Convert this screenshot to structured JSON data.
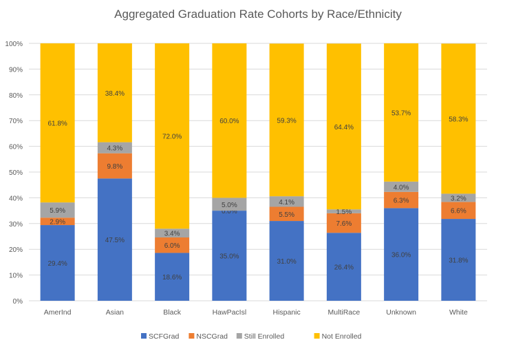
{
  "chart_data": {
    "type": "bar",
    "stacked": true,
    "title": "Aggregated Graduation Rate Cohorts by Race/Ethnicity",
    "xlabel": "",
    "ylabel": "",
    "ylim": [
      0,
      100
    ],
    "yticks": [
      "0%",
      "10%",
      "20%",
      "30%",
      "40%",
      "50%",
      "60%",
      "70%",
      "80%",
      "90%",
      "100%"
    ],
    "grid": true,
    "legend": "bottom",
    "categories": [
      "AmerInd",
      "Asian",
      "Black",
      "HawPacIsl",
      "Hispanic",
      "MultiRace",
      "Unknown",
      "White"
    ],
    "series": [
      {
        "name": "SCFGrad",
        "color": "#4472C4",
        "values": [
          29.4,
          47.5,
          18.6,
          35.0,
          31.0,
          26.4,
          36.0,
          31.8
        ]
      },
      {
        "name": "NSCGrad",
        "color": "#ED7D31",
        "values": [
          2.9,
          9.8,
          6.0,
          0.0,
          5.5,
          7.6,
          6.3,
          6.6
        ]
      },
      {
        "name": "Still Enrolled",
        "color": "#A5A5A5",
        "values": [
          5.9,
          4.3,
          3.4,
          5.0,
          4.1,
          1.5,
          4.0,
          3.2
        ]
      },
      {
        "name": "Not Enrolled",
        "color": "#FFC000",
        "values": [
          61.8,
          38.4,
          72.0,
          60.0,
          59.3,
          64.4,
          53.7,
          58.3
        ]
      }
    ]
  }
}
